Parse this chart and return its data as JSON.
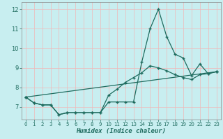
{
  "xlabel": "Humidex (Indice chaleur)",
  "bg_color": "#c8eef0",
  "grid_color": "#f0b8b8",
  "line_color": "#1e6b5e",
  "xlim": [
    -0.5,
    23.5
  ],
  "ylim": [
    6.35,
    12.35
  ],
  "xticks": [
    0,
    1,
    2,
    3,
    4,
    5,
    6,
    7,
    8,
    9,
    10,
    11,
    12,
    13,
    14,
    15,
    16,
    17,
    18,
    19,
    20,
    21,
    22,
    23
  ],
  "yticks": [
    7,
    8,
    9,
    10,
    11,
    12
  ],
  "series1_x": [
    0,
    1,
    2,
    3,
    4,
    5,
    6,
    7,
    8,
    9,
    10,
    11,
    12,
    13,
    14,
    15,
    16,
    17,
    18,
    19,
    20,
    21,
    22,
    23
  ],
  "series1_y": [
    7.5,
    7.2,
    7.1,
    7.1,
    6.6,
    6.7,
    6.7,
    6.7,
    6.7,
    6.7,
    7.25,
    7.25,
    7.25,
    7.25,
    9.3,
    11.0,
    12.0,
    10.6,
    9.7,
    9.5,
    8.6,
    9.2,
    8.7,
    8.8
  ],
  "series2_x": [
    0,
    1,
    2,
    3,
    4,
    5,
    6,
    7,
    8,
    9,
    10,
    11,
    12,
    13,
    14,
    15,
    16,
    17,
    18,
    19,
    20,
    21,
    22,
    23
  ],
  "series2_y": [
    7.5,
    7.2,
    7.1,
    7.1,
    6.6,
    6.7,
    6.7,
    6.7,
    6.7,
    6.7,
    7.6,
    7.9,
    8.25,
    8.5,
    8.75,
    9.1,
    9.0,
    8.85,
    8.65,
    8.5,
    8.4,
    8.65,
    8.7,
    8.8
  ],
  "series3_x": [
    0,
    23
  ],
  "series3_y": [
    7.5,
    8.8
  ],
  "marker_size": 2.0,
  "line_width": 0.9
}
